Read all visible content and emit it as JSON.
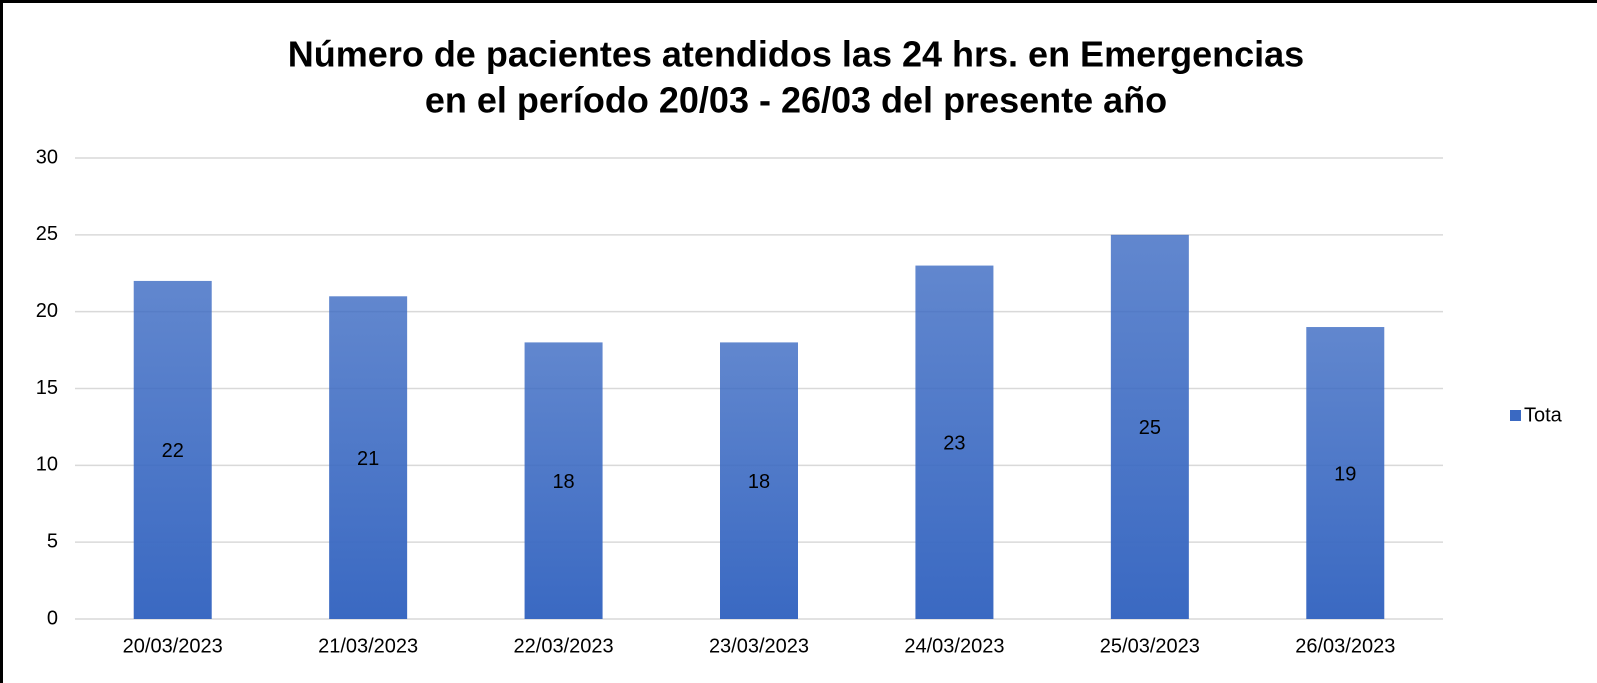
{
  "chart_data": {
    "type": "bar",
    "title": [
      "Número de pacientes atendidos las 24 hrs. en Emergencias",
      "en el período 20/03 - 26/03 del presente año"
    ],
    "categories": [
      "20/03/2023",
      "21/03/2023",
      "22/03/2023",
      "23/03/2023",
      "24/03/2023",
      "25/03/2023",
      "26/03/2023"
    ],
    "series": [
      {
        "name": "Tota",
        "color": "#3a69c2",
        "values": [
          22,
          21,
          18,
          18,
          23,
          25,
          19
        ]
      }
    ],
    "ylim": [
      0,
      30
    ],
    "yticks": [
      0,
      5,
      10,
      15,
      20,
      25,
      30
    ],
    "grid": true,
    "legend": "right"
  }
}
